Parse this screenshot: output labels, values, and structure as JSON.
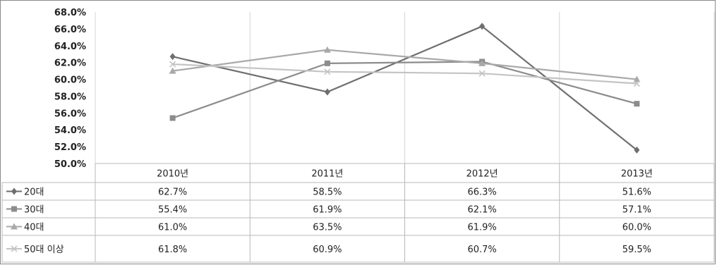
{
  "chart_data": {
    "type": "line",
    "categories": [
      "2010년",
      "2011년",
      "2012년",
      "2013년"
    ],
    "ylim": [
      50,
      68
    ],
    "ytick_step": 2,
    "ytick_format": "percent_1dp",
    "grid": true,
    "legend_placement": "data-table",
    "series": [
      {
        "name": "20대",
        "values": [
          62.7,
          58.5,
          66.3,
          51.6
        ],
        "labels": [
          "62.7%",
          "58.5%",
          "66.3%",
          "51.6%"
        ],
        "color": "#6e6e6e",
        "marker": "diamond"
      },
      {
        "name": "30대",
        "values": [
          55.4,
          61.9,
          62.1,
          57.1
        ],
        "labels": [
          "55.4%",
          "61.9%",
          "62.1%",
          "57.1%"
        ],
        "color": "#8c8c8c",
        "marker": "square"
      },
      {
        "name": "40대",
        "values": [
          61.0,
          63.5,
          61.9,
          60.0
        ],
        "labels": [
          "61.0%",
          "63.5%",
          "61.9%",
          "60.0%"
        ],
        "color": "#a9a9a9",
        "marker": "triangle"
      },
      {
        "name": "50대 이상",
        "values": [
          61.8,
          60.9,
          60.7,
          59.5
        ],
        "labels": [
          "61.8%",
          "60.9%",
          "60.7%",
          "59.5%"
        ],
        "color": "#c4c4c4",
        "marker": "x"
      }
    ]
  }
}
